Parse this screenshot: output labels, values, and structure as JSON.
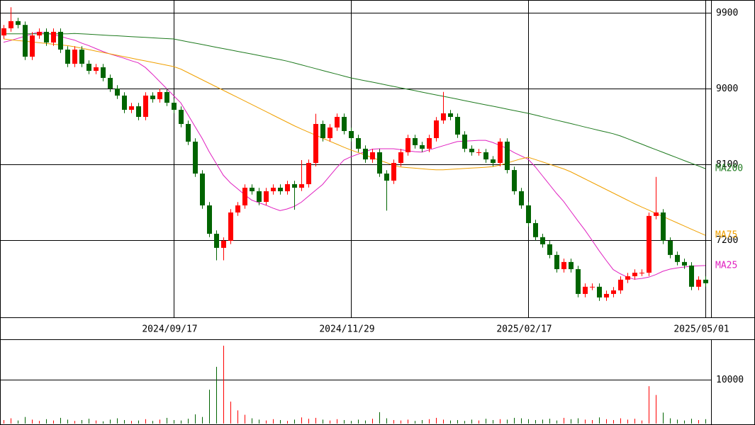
{
  "chart_data": [
    {
      "type": "candlestick",
      "categories": [
        null,
        null,
        null,
        null,
        null,
        null,
        null,
        null,
        null,
        null,
        null,
        null,
        null,
        null,
        null,
        null,
        null,
        null,
        null,
        null,
        null,
        null,
        null,
        null,
        "2024/09/17",
        null,
        null,
        null,
        null,
        null,
        null,
        null,
        null,
        null,
        null,
        null,
        null,
        null,
        null,
        null,
        null,
        null,
        null,
        null,
        null,
        null,
        null,
        null,
        null,
        "2024/11/29",
        null,
        null,
        null,
        null,
        null,
        null,
        null,
        null,
        null,
        null,
        null,
        null,
        null,
        null,
        null,
        null,
        null,
        null,
        null,
        null,
        null,
        null,
        null,
        null,
        "2025/02/17",
        null,
        null,
        null,
        null,
        null,
        null,
        null,
        null,
        null,
        null,
        null,
        null,
        null,
        null,
        null,
        null,
        null,
        null,
        null,
        null,
        null,
        null,
        null,
        null,
        "2025/05/01"
      ],
      "open": [
        9630,
        9715,
        9800,
        9755,
        9378,
        9630,
        9673,
        9546,
        9673,
        9462,
        9294,
        9462,
        9294,
        9210,
        9252,
        9126,
        9000,
        8916,
        8747,
        8789,
        8663,
        8916,
        8873,
        8958,
        8831,
        8747,
        8579,
        8369,
        7990,
        7612,
        7275,
        7108,
        7192,
        7528,
        7612,
        7822,
        7780,
        7654,
        7780,
        7822,
        7780,
        7864,
        7822,
        7864,
        8116,
        8579,
        8411,
        8537,
        8663,
        8495,
        8411,
        8285,
        8158,
        8243,
        7990,
        7906,
        8116,
        8243,
        8411,
        8327,
        8285,
        8411,
        8621,
        8705,
        8663,
        8453,
        8285,
        8243,
        8243,
        8158,
        8116,
        8369,
        8032,
        7780,
        7612,
        7402,
        7235,
        7150,
        7024,
        6855,
        6940,
        6855,
        6561,
        6646,
        6646,
        6519,
        6561,
        6603,
        6730,
        6771,
        6813,
        6813,
        7487,
        7528,
        7192,
        7024,
        6940,
        6898,
        6646,
        6730
      ],
      "high": [
        9755,
        9965,
        9840,
        9795,
        9670,
        9713,
        9713,
        9713,
        9713,
        9502,
        9502,
        9502,
        9334,
        9292,
        9292,
        9166,
        9040,
        8956,
        8829,
        8829,
        8956,
        8956,
        8998,
        8998,
        8871,
        8787,
        8619,
        8409,
        8030,
        7652,
        7315,
        7232,
        7568,
        7652,
        7862,
        7862,
        7820,
        7820,
        7862,
        7862,
        7904,
        7904,
        8150,
        8156,
        8700,
        8619,
        8577,
        8703,
        8703,
        8535,
        8451,
        8325,
        8283,
        8283,
        8030,
        8156,
        8283,
        8451,
        8451,
        8367,
        8451,
        8661,
        8960,
        8745,
        8703,
        8493,
        8325,
        8283,
        8283,
        8198,
        8409,
        8409,
        8072,
        7820,
        7652,
        7442,
        7275,
        7190,
        7064,
        6980,
        6980,
        6895,
        6686,
        6686,
        6686,
        6601,
        6643,
        6770,
        6811,
        6853,
        6853,
        7527,
        7950,
        7568,
        7232,
        7064,
        6980,
        6938,
        6770,
        6770
      ],
      "low": [
        9590,
        9675,
        9715,
        9338,
        9338,
        9590,
        9506,
        9506,
        9422,
        9254,
        9254,
        9254,
        9170,
        9170,
        9086,
        8960,
        8876,
        8707,
        8707,
        8623,
        8623,
        8833,
        8833,
        8791,
        8707,
        8539,
        8329,
        7950,
        7572,
        7235,
        6960,
        6960,
        7152,
        7488,
        7572,
        7740,
        7614,
        7614,
        7740,
        7740,
        7740,
        7560,
        7782,
        7824,
        8076,
        8371,
        8371,
        8497,
        8455,
        8371,
        8245,
        8118,
        8118,
        7950,
        7550,
        7866,
        8076,
        8203,
        8287,
        8245,
        8245,
        8371,
        8581,
        8623,
        8413,
        8245,
        8203,
        8203,
        8118,
        8076,
        8076,
        7992,
        7740,
        7572,
        7362,
        7195,
        7110,
        6984,
        6815,
        6815,
        6815,
        6521,
        6521,
        6606,
        6479,
        6479,
        6521,
        6563,
        6690,
        6731,
        6773,
        6773,
        7447,
        7152,
        6984,
        6900,
        6858,
        6606,
        6606,
        6648
      ],
      "close": [
        9715,
        9800,
        9755,
        9378,
        9630,
        9673,
        9546,
        9673,
        9462,
        9294,
        9462,
        9294,
        9210,
        9252,
        9126,
        9000,
        8916,
        8747,
        8789,
        8663,
        8916,
        8873,
        8958,
        8831,
        8747,
        8579,
        8369,
        7990,
        7612,
        7275,
        7108,
        7192,
        7528,
        7612,
        7822,
        7780,
        7654,
        7780,
        7822,
        7780,
        7864,
        7822,
        7864,
        8116,
        8579,
        8411,
        8537,
        8663,
        8495,
        8411,
        8285,
        8158,
        8243,
        7990,
        7906,
        8116,
        8243,
        8411,
        8327,
        8285,
        8411,
        8621,
        8705,
        8663,
        8453,
        8285,
        8243,
        8243,
        8158,
        8116,
        8369,
        8032,
        7780,
        7612,
        7402,
        7235,
        7150,
        7024,
        6855,
        6940,
        6855,
        6561,
        6646,
        6646,
        6519,
        6561,
        6603,
        6730,
        6771,
        6813,
        6813,
        7487,
        7528,
        7192,
        7024,
        6940,
        6898,
        6646,
        6730,
        6688
      ],
      "up_color": "#ff0000",
      "down_color": "#006400",
      "ylim": [
        6283,
        10051
      ],
      "yticks": [
        9900,
        9000,
        8100,
        7200
      ],
      "grid": true,
      "series": [
        {
          "name": "MA25",
          "color": "#e020c0",
          "values": [
            9550,
            9570,
            9595,
            9620,
            9650,
            9670,
            9660,
            9640,
            9620,
            9595,
            9575,
            9540,
            9510,
            9475,
            9440,
            9410,
            9385,
            9360,
            9330,
            9305,
            9250,
            9170,
            9085,
            9000,
            8915,
            8830,
            8690,
            8550,
            8410,
            8250,
            8110,
            7970,
            7880,
            7810,
            7740,
            7675,
            7645,
            7615,
            7580,
            7550,
            7570,
            7600,
            7650,
            7720,
            7790,
            7860,
            7960,
            8060,
            8150,
            8190,
            8220,
            8250,
            8280,
            8285,
            8285,
            8285,
            8275,
            8260,
            8250,
            8245,
            8270,
            8295,
            8320,
            8345,
            8370,
            8375,
            8380,
            8385,
            8385,
            8360,
            8325,
            8290,
            8240,
            8200,
            8160,
            8070,
            7965,
            7860,
            7755,
            7660,
            7545,
            7430,
            7320,
            7200,
            7075,
            6960,
            6850,
            6800,
            6760,
            6735,
            6745,
            6760,
            6790,
            6830,
            6855,
            6870,
            6880,
            6890,
            6895,
            6898
          ]
        },
        {
          "name": "MA75",
          "color": "#f0a000",
          "values": [
            9588,
            9579,
            9570,
            9562,
            9553,
            9544,
            9535,
            9526,
            9518,
            9509,
            9496,
            9479,
            9462,
            9445,
            9429,
            9412,
            9395,
            9378,
            9361,
            9344,
            9328,
            9311,
            9294,
            9277,
            9260,
            9231,
            9189,
            9147,
            9105,
            9063,
            9021,
            8979,
            8937,
            8895,
            8853,
            8811,
            8769,
            8727,
            8684,
            8642,
            8600,
            8558,
            8519,
            8483,
            8447,
            8411,
            8375,
            8339,
            8303,
            8270,
            8240,
            8210,
            8180,
            8150,
            8120,
            8090,
            8068,
            8061,
            8054,
            8047,
            8040,
            8035,
            8035,
            8040,
            8045,
            8050,
            8055,
            8060,
            8065,
            8072,
            8090,
            8115,
            8140,
            8165,
            8184,
            8157,
            8129,
            8101,
            8074,
            8046,
            8011,
            7969,
            7927,
            7885,
            7843,
            7801,
            7759,
            7717,
            7675,
            7633,
            7593,
            7556,
            7518,
            7481,
            7443,
            7406,
            7369,
            7331,
            7294,
            7257
          ]
        },
        {
          "name": "MA200",
          "color": "#1e7a1e",
          "values": [
            9650,
            9650,
            9650,
            9650,
            9650,
            9650,
            9650,
            9650,
            9650,
            9650,
            9654,
            9649,
            9645,
            9640,
            9635,
            9630,
            9626,
            9621,
            9616,
            9611,
            9607,
            9602,
            9597,
            9593,
            9588,
            9572,
            9555,
            9539,
            9523,
            9507,
            9490,
            9474,
            9458,
            9441,
            9425,
            9409,
            9393,
            9376,
            9360,
            9344,
            9325,
            9303,
            9281,
            9259,
            9237,
            9214,
            9192,
            9170,
            9148,
            9126,
            9109,
            9092,
            9076,
            9059,
            9042,
            9025,
            9008,
            8991,
            8975,
            8958,
            8941,
            8924,
            8908,
            8891,
            8874,
            8857,
            8840,
            8823,
            8806,
            8790,
            8773,
            8756,
            8739,
            8722,
            8705,
            8685,
            8665,
            8644,
            8624,
            8604,
            8584,
            8564,
            8543,
            8523,
            8503,
            8483,
            8463,
            8437,
            8405,
            8372,
            8340,
            8307,
            8275,
            8243,
            8210,
            8178,
            8145,
            8113,
            8081,
            8048
          ]
        }
      ]
    },
    {
      "type": "bar",
      "values": [
        800,
        1200,
        700,
        1500,
        900,
        600,
        1000,
        700,
        1300,
        900,
        600,
        800,
        1100,
        700,
        500,
        900,
        1200,
        800,
        600,
        700,
        1000,
        600,
        900,
        1300,
        800,
        700,
        1100,
        2100,
        1500,
        7700,
        12900,
        17700,
        5000,
        3000,
        2000,
        1200,
        900,
        700,
        1000,
        800,
        600,
        900,
        1400,
        1100,
        1300,
        900,
        700,
        1000,
        800,
        600,
        900,
        700,
        1100,
        2600,
        1200,
        800,
        700,
        900,
        600,
        800,
        1000,
        1300,
        900,
        700,
        800,
        600,
        900,
        700,
        1100,
        800,
        1000,
        900,
        1300,
        1200,
        1000,
        800,
        900,
        1100,
        700,
        1300,
        1000,
        1200,
        900,
        800,
        1400,
        1000,
        800,
        1200,
        900,
        1100,
        700,
        8500,
        6500,
        2500,
        1200,
        900,
        700,
        1100,
        800,
        1000
      ],
      "ylim": [
        0,
        19000
      ],
      "yticks": [
        10000
      ],
      "grid": true
    }
  ]
}
